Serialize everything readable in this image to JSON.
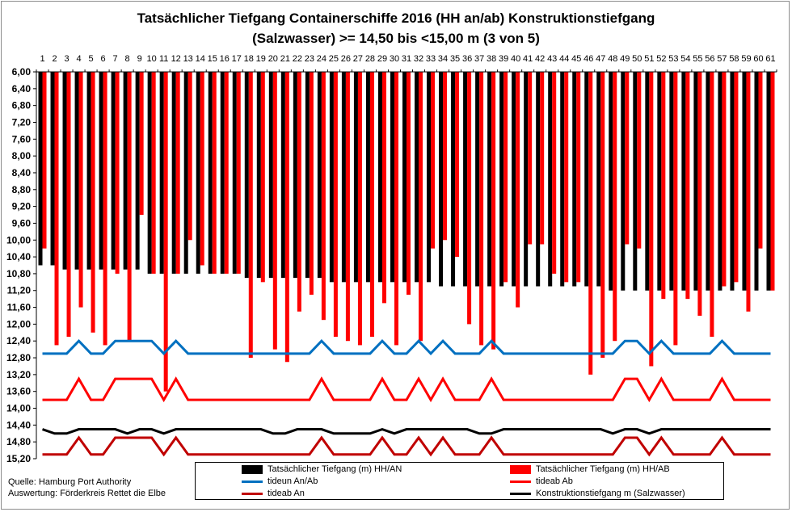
{
  "title_lines": [
    "Tatsächlicher  Tiefgang  Containerschiffe  2016  (HH an/ab)  Konstruktionstiefgang",
    "(Salzwasser) >= 14,50 bis <15,00 m (3 von 5)"
  ],
  "source_lines": [
    "Quelle: Hamburg Port Authority",
    "Auswertung: Förderkreis Rettet die Elbe"
  ],
  "chart_data": {
    "type": "bar",
    "title": "Tatsächlicher  Tiefgang  Containerschiffe  2016  (HH an/ab)  Konstruktionstiefgang (Salzwasser) >= 14,50 bis <15,00 m (3 von 5)",
    "categories": [
      "1",
      "2",
      "3",
      "4",
      "5",
      "6",
      "7",
      "8",
      "9",
      "10",
      "11",
      "12",
      "13",
      "14",
      "15",
      "16",
      "17",
      "18",
      "19",
      "20",
      "21",
      "22",
      "23",
      "24",
      "25",
      "26",
      "27",
      "28",
      "29",
      "30",
      "31",
      "32",
      "33",
      "34",
      "35",
      "36",
      "37",
      "38",
      "39",
      "40",
      "41",
      "42",
      "43",
      "44",
      "45",
      "46",
      "47",
      "48",
      "49",
      "50",
      "51",
      "52",
      "53",
      "54",
      "55",
      "56",
      "57",
      "58",
      "59",
      "60",
      "61"
    ],
    "y_axis": {
      "min": 6.0,
      "max": 15.2,
      "reversed": true,
      "position": "top",
      "ticks": [
        "6,00",
        "6,40",
        "6,80",
        "7,20",
        "7,60",
        "8,00",
        "8,40",
        "8,80",
        "9,20",
        "9,60",
        "10,00",
        "10,40",
        "10,80",
        "11,20",
        "11,60",
        "12,00",
        "12,40",
        "12,80",
        "13,20",
        "13,60",
        "14,00",
        "14,40",
        "14,80",
        "15,20"
      ]
    },
    "grid": false,
    "legend_position": "bottom",
    "series": [
      {
        "name": "Tatsächlicher Tiefgang (m) HH/AN",
        "kind": "bar",
        "color": "#000000",
        "values": [
          10.6,
          10.6,
          10.7,
          10.7,
          10.7,
          10.7,
          10.7,
          10.7,
          10.7,
          10.8,
          10.8,
          10.8,
          10.8,
          10.8,
          10.8,
          10.8,
          10.8,
          10.9,
          10.9,
          10.9,
          10.9,
          10.9,
          10.9,
          10.9,
          11.0,
          11.0,
          11.0,
          11.0,
          11.0,
          11.0,
          11.0,
          11.0,
          11.0,
          11.1,
          11.1,
          11.1,
          11.1,
          11.1,
          11.1,
          11.1,
          11.1,
          11.1,
          11.1,
          11.1,
          11.1,
          11.1,
          11.1,
          11.2,
          11.2,
          11.2,
          11.2,
          11.2,
          11.2,
          11.2,
          11.2,
          11.2,
          11.2,
          11.2,
          11.2,
          11.2,
          11.2
        ]
      },
      {
        "name": "Tatsächlicher Tiefgang (m) HH/AB",
        "kind": "bar",
        "color": "#ff0000",
        "values": [
          10.2,
          12.5,
          12.3,
          11.6,
          12.2,
          12.5,
          10.8,
          12.4,
          9.4,
          10.8,
          13.6,
          10.8,
          10.0,
          10.6,
          10.8,
          10.8,
          10.8,
          12.8,
          11.0,
          12.6,
          12.9,
          11.7,
          11.3,
          11.9,
          12.3,
          12.4,
          12.5,
          12.3,
          11.5,
          12.5,
          11.3,
          12.4,
          10.2,
          10.0,
          10.4,
          12.0,
          12.5,
          12.6,
          11.0,
          11.6,
          10.1,
          10.1,
          10.8,
          11.0,
          11.0,
          13.2,
          12.8,
          12.4,
          10.1,
          10.2,
          13.0,
          11.4,
          12.5,
          11.4,
          11.8,
          12.3,
          11.1,
          11.0,
          11.7,
          10.2,
          11.2
        ]
      },
      {
        "name": "tideun An/Ab",
        "kind": "line",
        "color": "#0070c0",
        "values": [
          12.7,
          12.7,
          12.7,
          12.4,
          12.7,
          12.7,
          12.4,
          12.4,
          12.4,
          12.4,
          12.7,
          12.4,
          12.7,
          12.7,
          12.7,
          12.7,
          12.7,
          12.7,
          12.7,
          12.7,
          12.7,
          12.7,
          12.7,
          12.4,
          12.7,
          12.7,
          12.7,
          12.7,
          12.4,
          12.7,
          12.7,
          12.4,
          12.7,
          12.4,
          12.7,
          12.7,
          12.7,
          12.4,
          12.7,
          12.7,
          12.7,
          12.7,
          12.7,
          12.7,
          12.7,
          12.7,
          12.7,
          12.7,
          12.4,
          12.4,
          12.7,
          12.4,
          12.7,
          12.7,
          12.7,
          12.7,
          12.4,
          12.7,
          12.7,
          12.7,
          12.7
        ]
      },
      {
        "name": "tideab Ab",
        "kind": "line",
        "color": "#ff0000",
        "values": [
          13.8,
          13.8,
          13.8,
          13.3,
          13.8,
          13.8,
          13.3,
          13.3,
          13.3,
          13.3,
          13.8,
          13.3,
          13.8,
          13.8,
          13.8,
          13.8,
          13.8,
          13.8,
          13.8,
          13.8,
          13.8,
          13.8,
          13.8,
          13.3,
          13.8,
          13.8,
          13.8,
          13.8,
          13.3,
          13.8,
          13.8,
          13.3,
          13.8,
          13.3,
          13.8,
          13.8,
          13.8,
          13.3,
          13.8,
          13.8,
          13.8,
          13.8,
          13.8,
          13.8,
          13.8,
          13.8,
          13.8,
          13.8,
          13.3,
          13.3,
          13.8,
          13.3,
          13.8,
          13.8,
          13.8,
          13.8,
          13.3,
          13.8,
          13.8,
          13.8,
          13.8
        ]
      },
      {
        "name": "tideab An",
        "kind": "line",
        "color": "#c00000",
        "values": [
          15.1,
          15.1,
          15.1,
          14.7,
          15.1,
          15.1,
          14.7,
          14.7,
          14.7,
          14.7,
          15.1,
          14.7,
          15.1,
          15.1,
          15.1,
          15.1,
          15.1,
          15.1,
          15.1,
          15.1,
          15.1,
          15.1,
          15.1,
          14.7,
          15.1,
          15.1,
          15.1,
          15.1,
          14.7,
          15.1,
          15.1,
          14.7,
          15.1,
          14.7,
          15.1,
          15.1,
          15.1,
          14.7,
          15.1,
          15.1,
          15.1,
          15.1,
          15.1,
          15.1,
          15.1,
          15.1,
          15.1,
          15.1,
          14.7,
          14.7,
          15.1,
          14.7,
          15.1,
          15.1,
          15.1,
          15.1,
          14.7,
          15.1,
          15.1,
          15.1,
          15.1
        ]
      },
      {
        "name": "Konstruktionstiefgang  m  (Salzwasser)",
        "kind": "line",
        "color": "#000000",
        "values": [
          14.5,
          14.6,
          14.6,
          14.5,
          14.5,
          14.5,
          14.5,
          14.6,
          14.5,
          14.5,
          14.6,
          14.5,
          14.5,
          14.5,
          14.5,
          14.5,
          14.5,
          14.5,
          14.5,
          14.6,
          14.6,
          14.5,
          14.5,
          14.5,
          14.6,
          14.6,
          14.6,
          14.6,
          14.5,
          14.6,
          14.5,
          14.5,
          14.5,
          14.5,
          14.5,
          14.5,
          14.6,
          14.6,
          14.5,
          14.5,
          14.5,
          14.5,
          14.5,
          14.5,
          14.5,
          14.5,
          14.5,
          14.6,
          14.5,
          14.5,
          14.6,
          14.5,
          14.5,
          14.5,
          14.5,
          14.5,
          14.5,
          14.5,
          14.5,
          14.5,
          14.5
        ]
      }
    ]
  }
}
